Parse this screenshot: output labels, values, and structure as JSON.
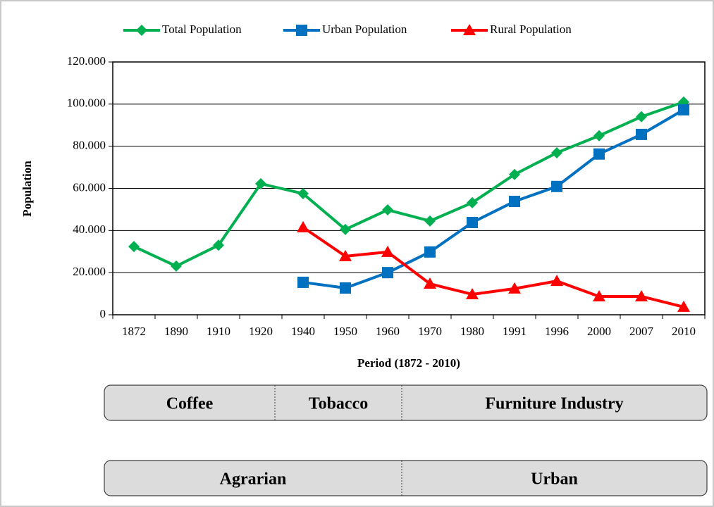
{
  "chart_data": {
    "type": "line",
    "xlabel": "Period (1872 - 2010)",
    "ylabel": "Population",
    "categories": [
      "1872",
      "1890",
      "1910",
      "1920",
      "1940",
      "1950",
      "1960",
      "1970",
      "1980",
      "1991",
      "1996",
      "2000",
      "2007",
      "2010"
    ],
    "series": [
      {
        "name": "Total Population",
        "color": "#00b050",
        "marker": "diamond",
        "values": [
          32400,
          23100,
          33000,
          62200,
          57500,
          40500,
          49800,
          44500,
          53200,
          66600,
          76900,
          85000,
          94000,
          101000
        ]
      },
      {
        "name": "Urban Population",
        "color": "#0070c0",
        "marker": "square",
        "values": [
          null,
          null,
          null,
          null,
          15400,
          12700,
          20000,
          29800,
          43800,
          53800,
          60900,
          76300,
          85600,
          97300
        ]
      },
      {
        "name": "Rural Population",
        "color": "#ff0000",
        "marker": "triangle",
        "values": [
          null,
          null,
          null,
          null,
          41500,
          27800,
          29800,
          14700,
          9700,
          12400,
          16000,
          8700,
          8700,
          3700
        ]
      }
    ],
    "ylim": [
      0,
      120000
    ],
    "yticks": [
      0,
      {
        "value": 20000,
        "label": "20.000"
      },
      {
        "value": 40000,
        "label": "40.000"
      },
      {
        "value": 60000,
        "label": "60.000"
      },
      {
        "value": 80000,
        "label": "80.000"
      },
      {
        "value": 100000,
        "label": "100.000"
      },
      {
        "value": 120000,
        "label": "120.000"
      }
    ],
    "grid": true,
    "legend": "top"
  },
  "eras": {
    "rows": [
      [
        "Coffee",
        "Tobacco",
        "Furniture Industry"
      ],
      [
        "Agrarian",
        "Urban"
      ]
    ]
  }
}
